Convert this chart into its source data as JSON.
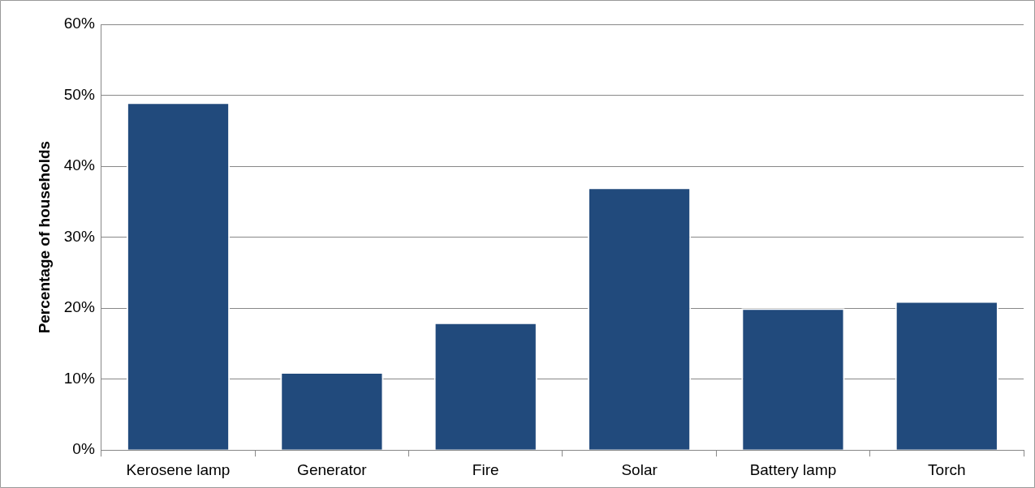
{
  "chart_data": {
    "type": "bar",
    "ylabel": "Percentage of households",
    "categories": [
      "Kerosene lamp",
      "Generator",
      "Fire",
      "Solar",
      "Battery lamp",
      "Torch"
    ],
    "values": [
      49,
      11,
      18,
      37,
      20,
      21
    ],
    "color": "#214a7c",
    "ylim": [
      0,
      60
    ],
    "yticks": [
      {
        "value": 0,
        "label": "0%"
      },
      {
        "value": 10,
        "label": "10%"
      },
      {
        "value": 20,
        "label": "20%"
      },
      {
        "value": 30,
        "label": "30%"
      },
      {
        "value": 40,
        "label": "40%"
      },
      {
        "value": 50,
        "label": "50%"
      },
      {
        "value": 60,
        "label": "60%"
      }
    ],
    "grid": "y",
    "legend": false
  }
}
